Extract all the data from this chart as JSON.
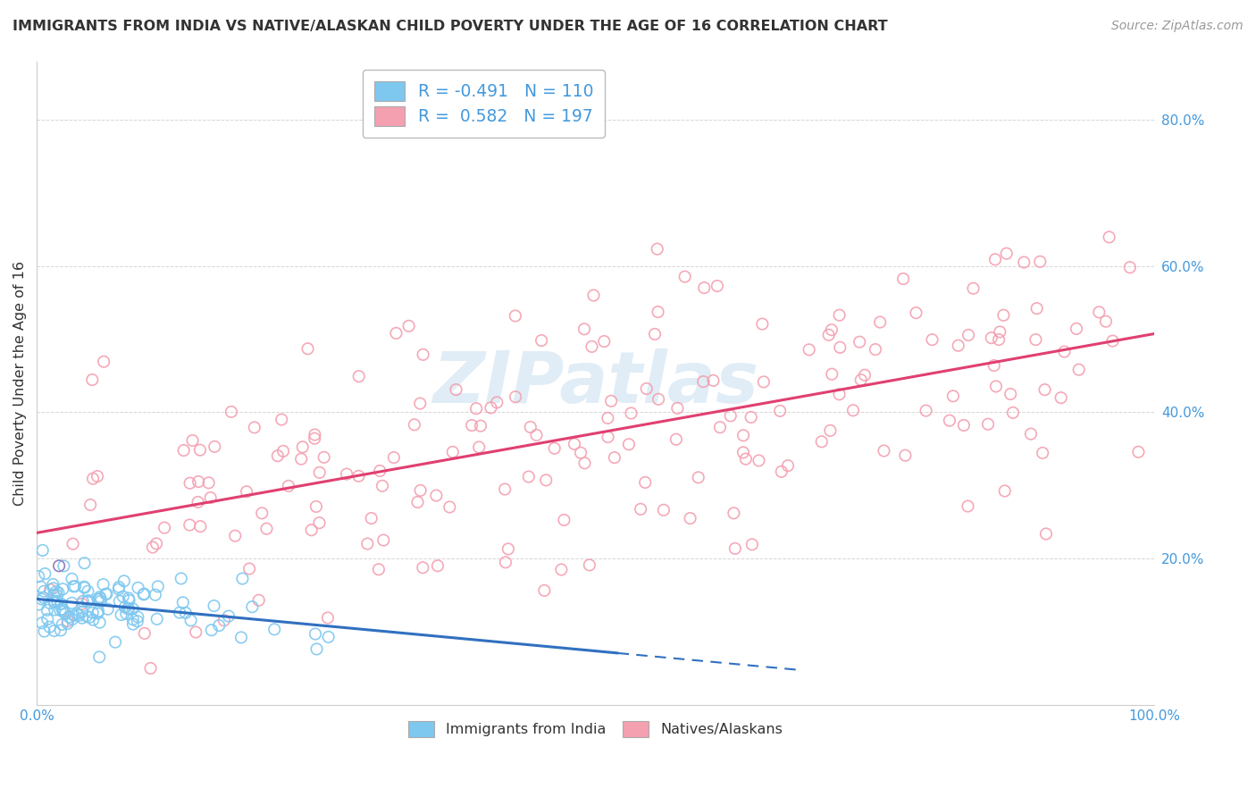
{
  "title": "IMMIGRANTS FROM INDIA VS NATIVE/ALASKAN CHILD POVERTY UNDER THE AGE OF 16 CORRELATION CHART",
  "source": "Source: ZipAtlas.com",
  "ylabel": "Child Poverty Under the Age of 16",
  "ytick_values": [
    0.0,
    0.2,
    0.4,
    0.6,
    0.8
  ],
  "ytick_labels": [
    "",
    "20.0%",
    "40.0%",
    "60.0%",
    "80.0%"
  ],
  "xlim": [
    0.0,
    1.0
  ],
  "ylim": [
    0.0,
    0.88
  ],
  "legend_entry1": "R = -0.491   N = 110",
  "legend_entry2": "R =  0.582   N = 197",
  "legend_labels": [
    "Immigrants from India",
    "Natives/Alaskans"
  ],
  "india_marker_color": "#7ec8f0",
  "native_marker_color": "#f4a0b0",
  "india_line_color": "#3070c0",
  "native_line_color": "#e04070",
  "india_line_dash": [
    8,
    4
  ],
  "watermark_text": "ZIPatlas",
  "background_color": "#ffffff",
  "grid_color": "#cccccc",
  "tick_label_color": "#4499dd",
  "title_color": "#333333",
  "ylabel_color": "#333333",
  "source_color": "#999999"
}
